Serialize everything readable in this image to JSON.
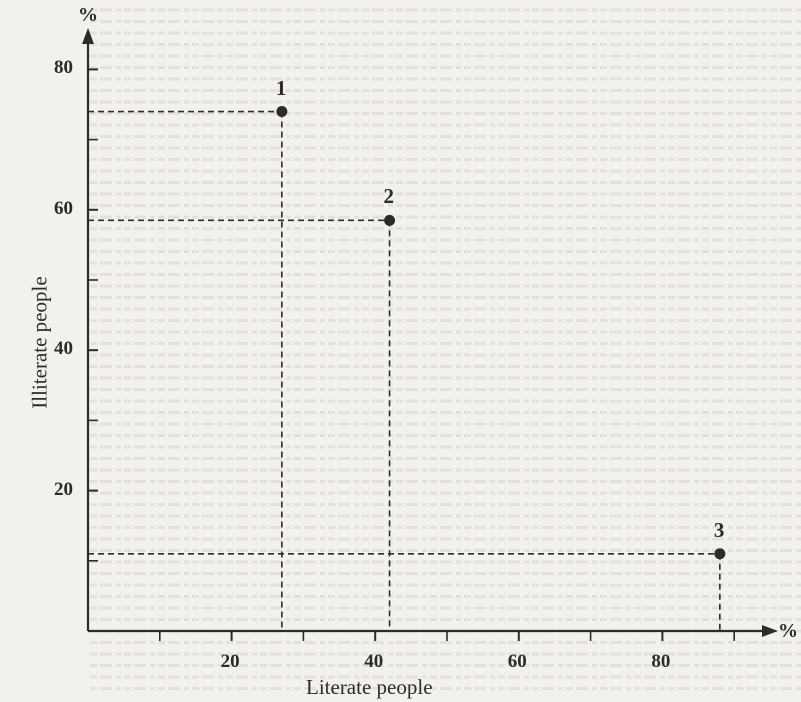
{
  "chart_data": {
    "type": "scatter",
    "xlabel": "Literate people",
    "ylabel": "Illiterate people",
    "x_unit": "%",
    "y_unit": "%",
    "xlim": [
      0,
      95
    ],
    "ylim": [
      0,
      85
    ],
    "x_ticks": [
      20,
      40,
      60,
      80
    ],
    "x_minor_ticks": [
      10,
      30,
      50,
      70,
      90
    ],
    "y_ticks": [
      20,
      40,
      60,
      80
    ],
    "y_minor_ticks": [
      10,
      30,
      50,
      70
    ],
    "grid": false,
    "guide_lines": "dashed",
    "points": [
      {
        "label": "1",
        "x": 27,
        "y": 74
      },
      {
        "label": "2",
        "x": 42,
        "y": 58.5
      },
      {
        "label": "3",
        "x": 88,
        "y": 11
      }
    ]
  }
}
